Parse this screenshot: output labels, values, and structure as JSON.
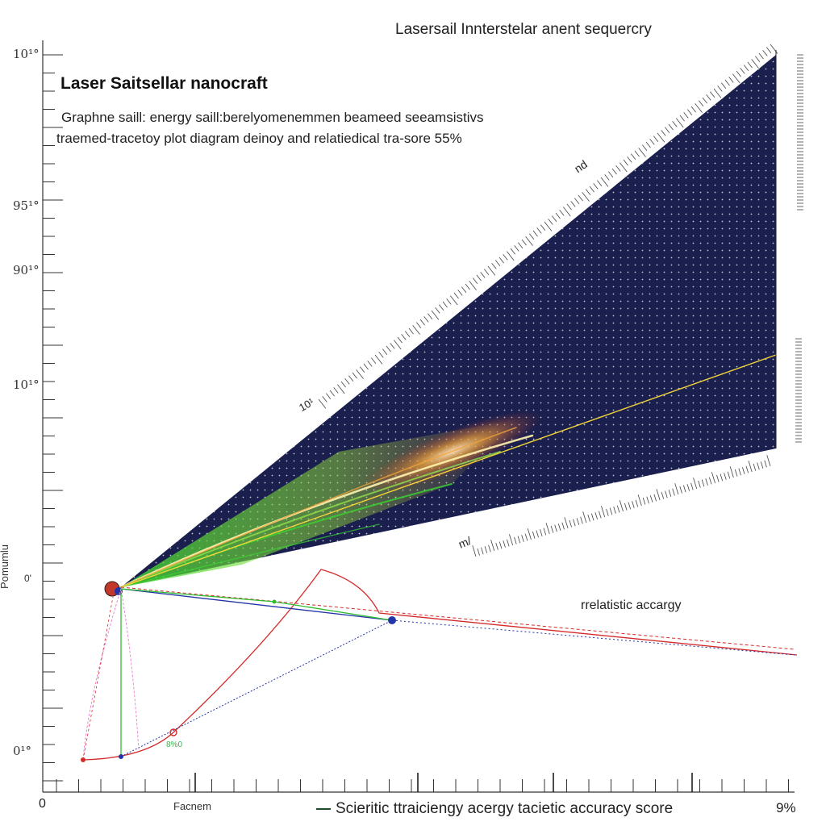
{
  "title": "Lasersail Innterstelar anent sequercry",
  "heading": "Laser Saitsellar nanocraft",
  "subtitle_line1": "Graphne saill: energy saill:berelyomenemmen beameed seeamsistivs",
  "subtitle_line2": "traemed-tracetoy plot diagram deinoy and relatiedical tra-sore 55%",
  "y_tick_labels": [
    "10¹°",
    "95¹°",
    "90¹°",
    "10¹°",
    "0¹°"
  ],
  "y_axis_title": "Pomumlu",
  "zero_marker": "0'",
  "x_tick_labels": {
    "start": "0",
    "mid": "Facnem",
    "end": "9%"
  },
  "annotations": {
    "relativistic": "rrelatistic accargy",
    "beam_upper_tag": "nd",
    "beam_lower_tag": "m/",
    "beam_origin_tag": "10¹",
    "green_tag": "8%0"
  },
  "legend": {
    "label": "Scieritic ttraiciengy acergy tacietic accuracy score",
    "color": "#1e4d2b"
  },
  "colors": {
    "beam_fill": "#1a1f4e",
    "beam_dots": "#ffffff",
    "plume_green": "#39d631",
    "plume_orange": "#f2a33a",
    "trajectory_red": "#d42a2a",
    "trajectory_blue": "#2334a8",
    "trajectory_green": "#2fbd2f",
    "trajectory_pink": "#e58ad6"
  }
}
